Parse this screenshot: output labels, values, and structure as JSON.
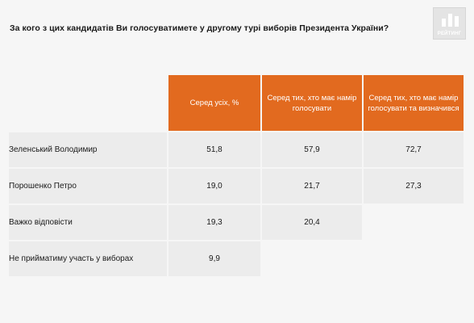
{
  "title": "За кого з цих кандидатів Ви голосуватимете у другому турі виборів Президента України?",
  "brand": {
    "logo_text": "РЕЙТИНГ",
    "accent": "#e26a1f"
  },
  "chart_data": {
    "type": "table",
    "columns": [
      "",
      "Серед усіх, %",
      "Серед тих, хто має намір голосувати",
      "Серед тих, хто має намір голосувати та визначився"
    ],
    "rows": [
      {
        "label": "Зеленський Володимир",
        "values": [
          "51,8",
          "57,9",
          "72,7"
        ]
      },
      {
        "label": "Порошенко Петро",
        "values": [
          "19,0",
          "21,7",
          "27,3"
        ]
      },
      {
        "label": "Важко відповісти",
        "values": [
          "19,3",
          "20,4",
          ""
        ]
      },
      {
        "label": "Не прийматиму участь у виборах",
        "values": [
          "9,9",
          "",
          ""
        ]
      }
    ]
  }
}
